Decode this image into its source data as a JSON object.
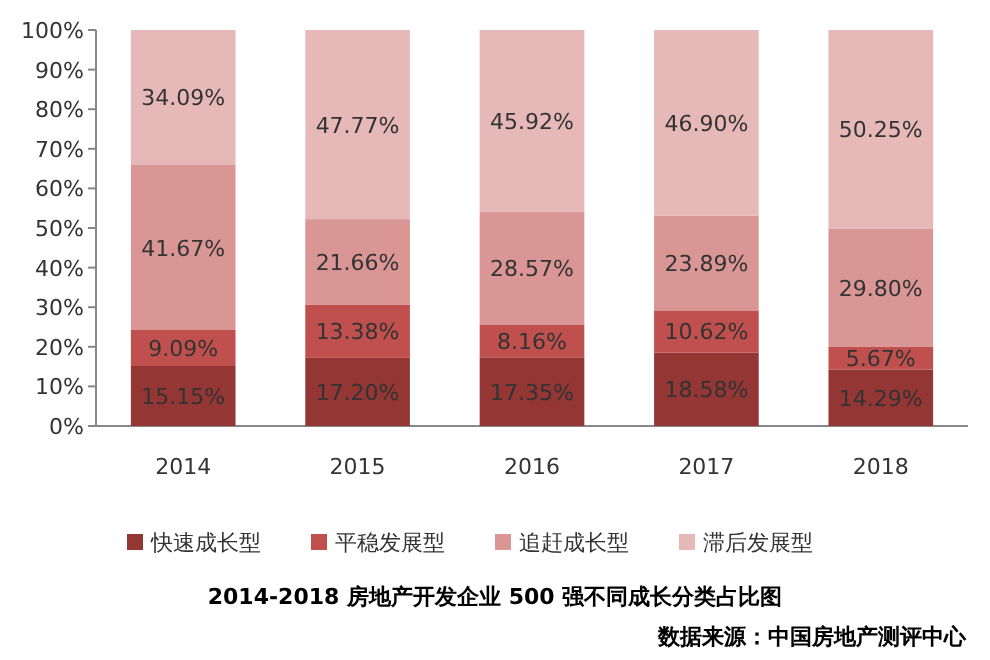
{
  "chart_data": {
    "type": "bar",
    "stacked": true,
    "categories": [
      "2014",
      "2015",
      "2016",
      "2017",
      "2018"
    ],
    "series": [
      {
        "name": "快速成长型",
        "color": "#943634",
        "values": [
          15.15,
          17.2,
          17.35,
          18.58,
          14.29
        ],
        "value_labels": [
          "15.15%",
          "17.20%",
          "17.35%",
          "18.58%",
          "14.29%"
        ]
      },
      {
        "name": "平稳发展型",
        "color": "#c0504d",
        "values": [
          9.09,
          13.38,
          8.16,
          10.62,
          5.67
        ],
        "value_labels": [
          "9.09%",
          "13.38%",
          "8.16%",
          "10.62%",
          "5.67%"
        ]
      },
      {
        "name": "追赶成长型",
        "color": "#d99694",
        "values": [
          41.67,
          21.66,
          28.57,
          23.89,
          29.8
        ],
        "value_labels": [
          "41.67%",
          "21.66%",
          "28.57%",
          "23.89%",
          "29.80%"
        ]
      },
      {
        "name": "滞后发展型",
        "color": "#e6b9b8",
        "values": [
          34.09,
          47.77,
          45.92,
          46.9,
          50.25
        ],
        "value_labels": [
          "34.09%",
          "47.77%",
          "45.92%",
          "46.90%",
          "50.25%"
        ]
      }
    ],
    "ylim": [
      0,
      100
    ],
    "yticks": [
      {
        "value": 0,
        "label": "0%"
      },
      {
        "value": 10,
        "label": "10%"
      },
      {
        "value": 20,
        "label": "20%"
      },
      {
        "value": 30,
        "label": "30%"
      },
      {
        "value": 40,
        "label": "40%"
      },
      {
        "value": 50,
        "label": "50%"
      },
      {
        "value": 60,
        "label": "60%"
      },
      {
        "value": 70,
        "label": "70%"
      },
      {
        "value": 80,
        "label": "80%"
      },
      {
        "value": 90,
        "label": "90%"
      },
      {
        "value": 100,
        "label": "100%"
      }
    ],
    "legend": "bottom",
    "title": "2014-2018 房地产开发企业 500 强不同成长分类占比图",
    "annotations": [
      "数据来源：中国房地产测评中心"
    ]
  }
}
